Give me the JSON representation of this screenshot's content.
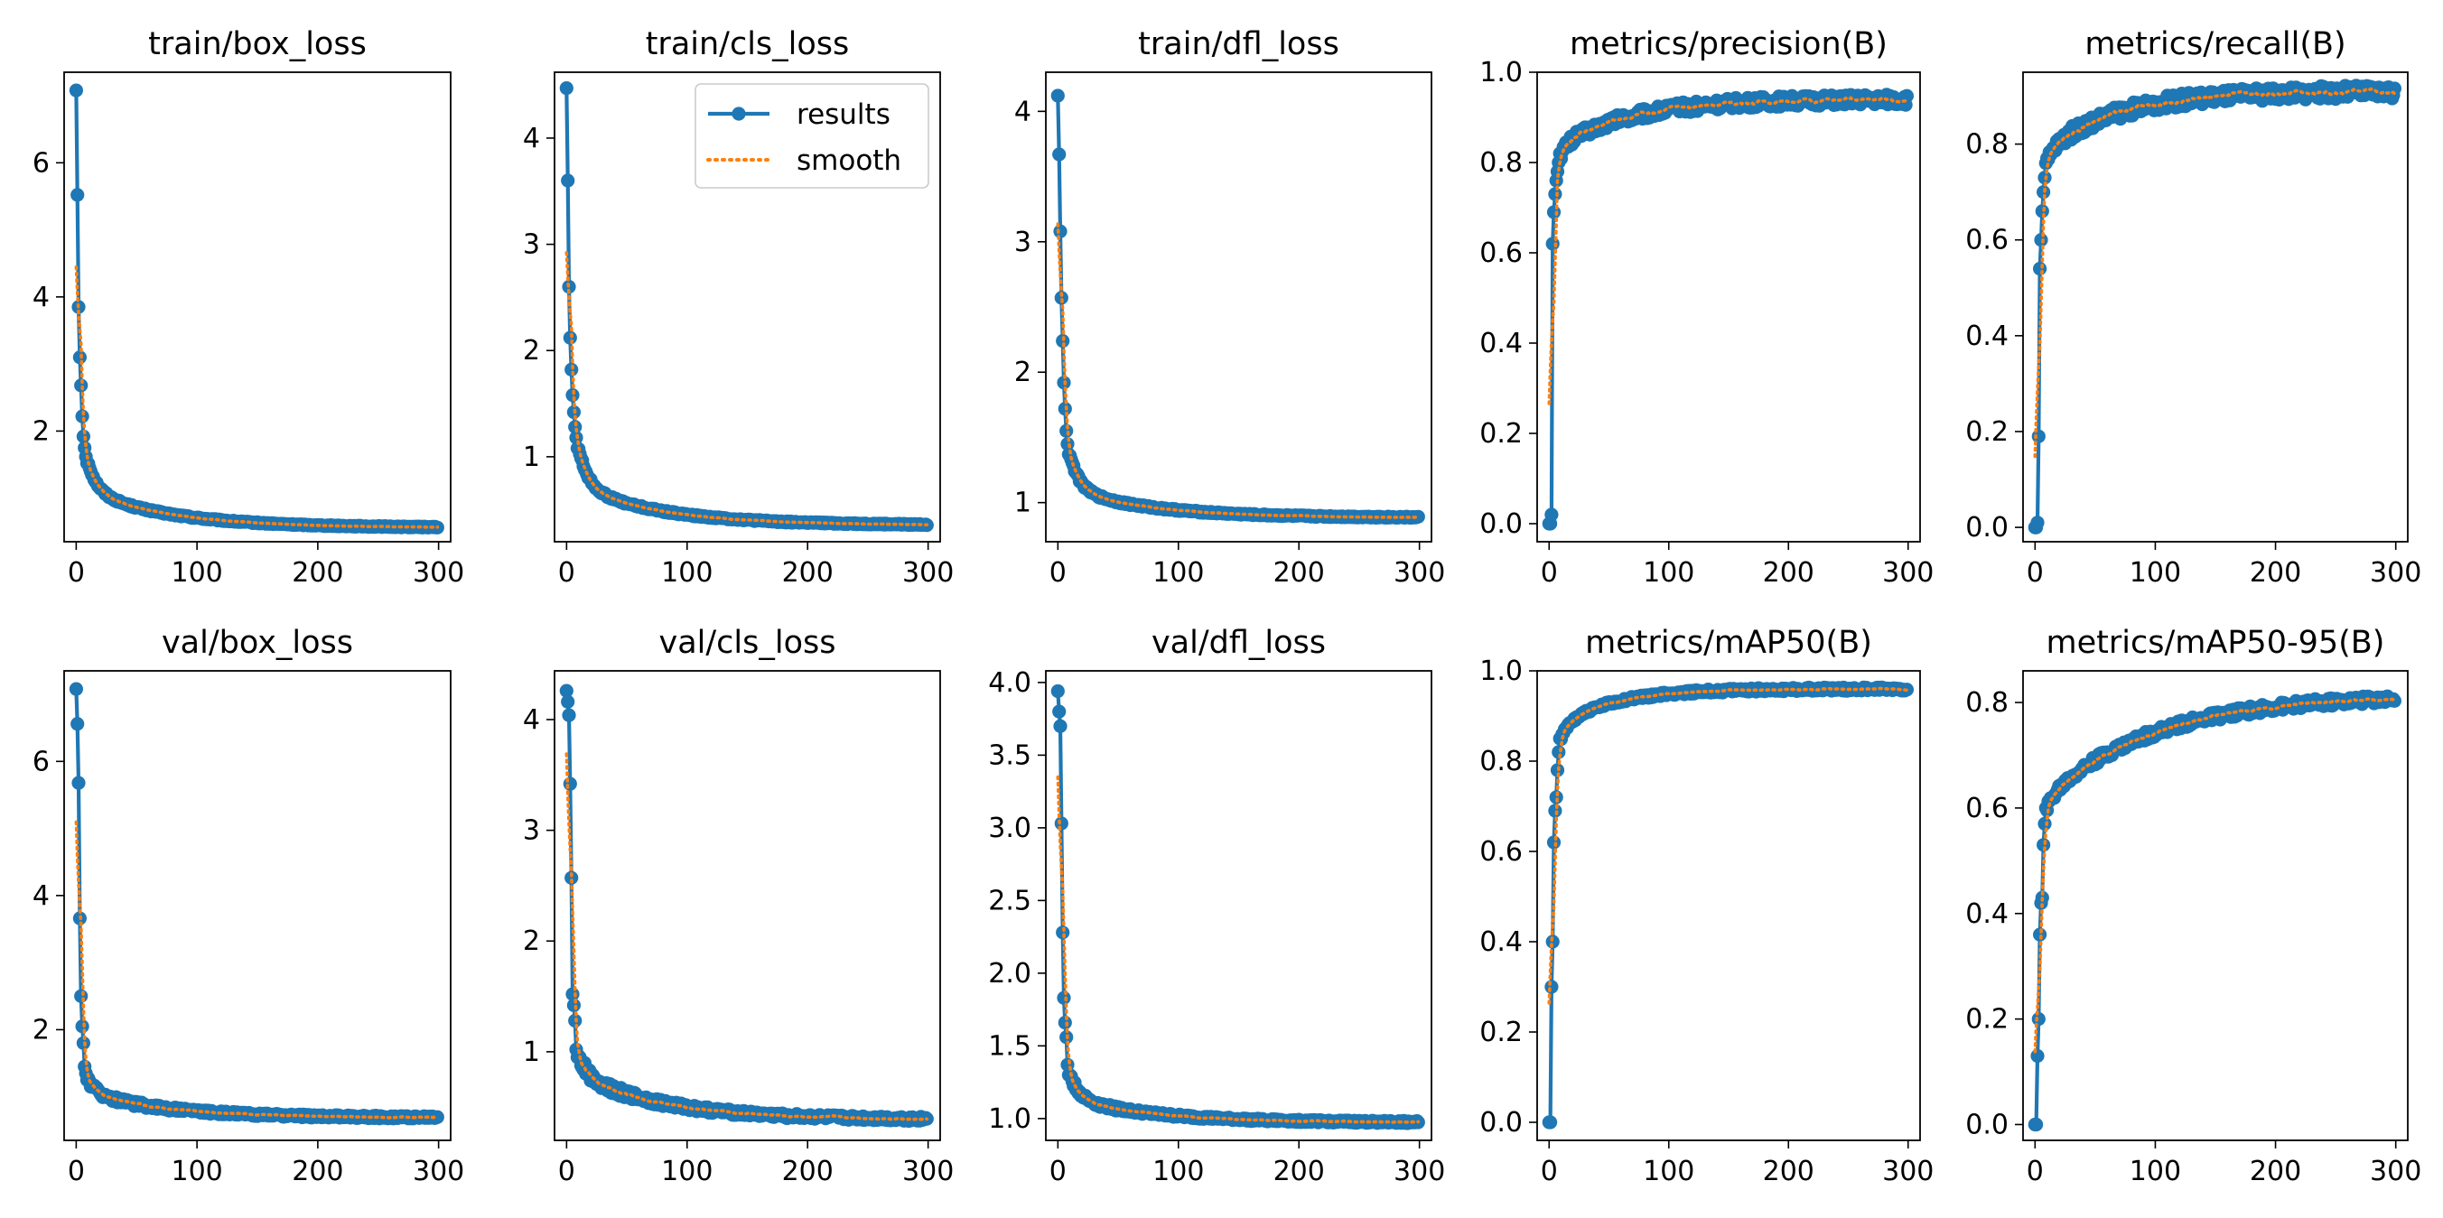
{
  "colors": {
    "results": "#1f77b4",
    "smooth": "#ff7f0e",
    "axes": "#000000",
    "background": "#ffffff"
  },
  "legend": {
    "results_label": "results",
    "smooth_label": "smooth",
    "placement": "upper-right of train/cls_loss"
  },
  "chart_data": [
    {
      "id": "train-box-loss",
      "title": "train/box_loss",
      "type": "line",
      "row": 0,
      "col": 0,
      "xlim": [
        -10,
        310
      ],
      "ylim": [
        0.35,
        7.35
      ],
      "xticks": [
        0,
        100,
        200,
        300
      ],
      "yticks": [
        2,
        4,
        6
      ],
      "ytick_labels": [
        "2",
        "4",
        "6"
      ],
      "shape": "decay",
      "start": [
        7.08,
        5.52,
        3.85,
        3.1,
        2.68,
        2.22,
        1.92,
        1.75,
        1.62,
        1.52
      ],
      "end": 0.55,
      "mid": 1.1,
      "tau": 40,
      "noise": 0.008,
      "show_legend": false
    },
    {
      "id": "train-cls-loss",
      "title": "train/cls_loss",
      "type": "line",
      "row": 0,
      "col": 1,
      "xlim": [
        -10,
        310
      ],
      "ylim": [
        0.2,
        4.62
      ],
      "xticks": [
        0,
        100,
        200,
        300
      ],
      "yticks": [
        1,
        2,
        3,
        4
      ],
      "ytick_labels": [
        "1",
        "2",
        "3",
        "4"
      ],
      "shape": "decay",
      "start": [
        4.47,
        3.6,
        2.6,
        2.12,
        1.82,
        1.58,
        1.42,
        1.28,
        1.18,
        1.08
      ],
      "end": 0.35,
      "mid": 0.72,
      "tau": 40,
      "noise": 0.006,
      "show_legend": true
    },
    {
      "id": "train-dfl-loss",
      "title": "train/dfl_loss",
      "type": "line",
      "row": 0,
      "col": 2,
      "xlim": [
        -10,
        310
      ],
      "ylim": [
        0.7,
        4.3
      ],
      "xticks": [
        0,
        100,
        200,
        300
      ],
      "yticks": [
        1,
        2,
        3,
        4
      ],
      "ytick_labels": [
        "1",
        "2",
        "3",
        "4"
      ],
      "shape": "decay",
      "start": [
        4.12,
        3.67,
        3.08,
        2.57,
        2.24,
        1.92,
        1.72,
        1.55,
        1.45,
        1.37
      ],
      "end": 0.88,
      "mid": 1.1,
      "tau": 40,
      "noise": 0.005,
      "show_legend": false
    },
    {
      "id": "metrics-precision",
      "title": "metrics/precision(B)",
      "type": "line",
      "row": 0,
      "col": 3,
      "xlim": [
        -10,
        310
      ],
      "ylim": [
        -0.04,
        1.0
      ],
      "xticks": [
        0,
        100,
        200,
        300
      ],
      "yticks": [
        0.0,
        0.2,
        0.4,
        0.6,
        0.8,
        1.0
      ],
      "ytick_labels": [
        "0.0",
        "0.2",
        "0.4",
        "0.6",
        "0.8",
        "1.0"
      ],
      "shape": "rise",
      "start": [
        0.0,
        0.0,
        0.02,
        0.62,
        0.69,
        0.73,
        0.76,
        0.78,
        0.8,
        0.82
      ],
      "end": 0.94,
      "mid": 0.84,
      "tau": 60,
      "noise": 0.012,
      "show_legend": false
    },
    {
      "id": "metrics-recall",
      "title": "metrics/recall(B)",
      "type": "line",
      "row": 0,
      "col": 4,
      "xlim": [
        -10,
        310
      ],
      "ylim": [
        -0.03,
        0.95
      ],
      "xticks": [
        0,
        100,
        200,
        300
      ],
      "yticks": [
        0.0,
        0.2,
        0.4,
        0.6,
        0.8
      ],
      "ytick_labels": [
        "0.0",
        "0.2",
        "0.4",
        "0.6",
        "0.8"
      ],
      "shape": "rise",
      "start": [
        0.0,
        0.0,
        0.01,
        0.19,
        0.54,
        0.6,
        0.66,
        0.7,
        0.73,
        0.76
      ],
      "end": 0.91,
      "mid": 0.79,
      "tau": 60,
      "noise": 0.014,
      "show_legend": false
    },
    {
      "id": "val-box-loss",
      "title": "val/box_loss",
      "type": "line",
      "row": 1,
      "col": 0,
      "xlim": [
        -10,
        310
      ],
      "ylim": [
        0.35,
        7.35
      ],
      "xticks": [
        0,
        100,
        200,
        300
      ],
      "yticks": [
        2,
        4,
        6
      ],
      "ytick_labels": [
        "2",
        "4",
        "6"
      ],
      "shape": "decay",
      "start": [
        7.08,
        6.56,
        5.68,
        3.66,
        2.5,
        2.05,
        1.8,
        1.45,
        1.35,
        1.25
      ],
      "end": 0.68,
      "mid": 1.05,
      "tau": 40,
      "noise": 0.02,
      "show_legend": false
    },
    {
      "id": "val-cls-loss",
      "title": "val/cls_loss",
      "type": "line",
      "row": 1,
      "col": 1,
      "xlim": [
        -10,
        310
      ],
      "ylim": [
        0.2,
        4.44
      ],
      "xticks": [
        0,
        100,
        200,
        300
      ],
      "yticks": [
        1,
        2,
        3,
        4
      ],
      "ytick_labels": [
        "1",
        "2",
        "3",
        "4"
      ],
      "shape": "decay",
      "start": [
        4.26,
        4.16,
        4.04,
        3.42,
        2.57,
        1.52,
        1.42,
        1.28,
        1.02,
        0.95
      ],
      "end": 0.38,
      "mid": 0.8,
      "tau": 40,
      "noise": 0.02,
      "show_legend": false
    },
    {
      "id": "val-dfl-loss",
      "title": "val/dfl_loss",
      "type": "line",
      "row": 1,
      "col": 2,
      "xlim": [
        -10,
        310
      ],
      "ylim": [
        0.85,
        4.08
      ],
      "xticks": [
        0,
        100,
        200,
        300
      ],
      "yticks": [
        1.0,
        1.5,
        2.0,
        2.5,
        3.0,
        3.5,
        4.0
      ],
      "ytick_labels": [
        "1.0",
        "1.5",
        "2.0",
        "2.5",
        "3.0",
        "3.5",
        "4.0"
      ],
      "shape": "decay",
      "start": [
        3.94,
        3.8,
        3.7,
        3.03,
        2.28,
        1.83,
        1.66,
        1.56,
        1.37,
        1.3
      ],
      "end": 0.97,
      "mid": 1.14,
      "tau": 40,
      "noise": 0.008,
      "show_legend": false
    },
    {
      "id": "metrics-map50",
      "title": "metrics/mAP50(B)",
      "type": "line",
      "row": 1,
      "col": 3,
      "xlim": [
        -10,
        310
      ],
      "ylim": [
        -0.04,
        1.0
      ],
      "xticks": [
        0,
        100,
        200,
        300
      ],
      "yticks": [
        0.0,
        0.2,
        0.4,
        0.6,
        0.8,
        1.0
      ],
      "ytick_labels": [
        "0.0",
        "0.2",
        "0.4",
        "0.6",
        "0.8",
        "1.0"
      ],
      "shape": "rise",
      "start": [
        0.0,
        0.0,
        0.3,
        0.4,
        0.62,
        0.69,
        0.72,
        0.78,
        0.82,
        0.85
      ],
      "end": 0.96,
      "mid": 0.88,
      "tau": 45,
      "noise": 0.004,
      "show_legend": false
    },
    {
      "id": "metrics-map50-95",
      "title": "metrics/mAP50-95(B)",
      "type": "line",
      "row": 1,
      "col": 4,
      "xlim": [
        -10,
        310
      ],
      "ylim": [
        -0.03,
        0.86
      ],
      "xticks": [
        0,
        100,
        200,
        300
      ],
      "yticks": [
        0.0,
        0.2,
        0.4,
        0.6,
        0.8
      ],
      "ytick_labels": [
        "0.0",
        "0.2",
        "0.4",
        "0.6",
        "0.8"
      ],
      "shape": "rise",
      "start": [
        0.0,
        0.0,
        0.13,
        0.2,
        0.36,
        0.42,
        0.43,
        0.53,
        0.57,
        0.6
      ],
      "end": 0.815,
      "mid": 0.62,
      "tau": 90,
      "noise": 0.008,
      "show_legend": false
    }
  ]
}
